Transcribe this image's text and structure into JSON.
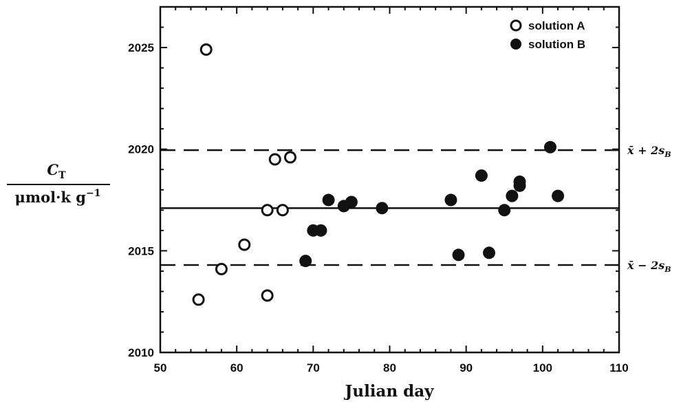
{
  "chart_data": {
    "type": "scatter",
    "xlabel": "Julian day",
    "ylabel": {
      "symbol": "C",
      "subscript": "T",
      "unit": "μmol·k g",
      "unit_superscript": "−1"
    },
    "xlim": [
      50,
      110
    ],
    "ylim": [
      2010,
      2027
    ],
    "x_ticks": [
      50,
      60,
      70,
      80,
      90,
      100,
      110
    ],
    "y_ticks": [
      2010,
      2015,
      2020,
      2025
    ],
    "grid": false,
    "legend_position": "top-right",
    "series": [
      {
        "name": "solution A",
        "marker": "open-circle",
        "x": [
          55,
          56,
          58,
          61,
          64,
          64,
          65,
          66,
          67
        ],
        "y": [
          2012.6,
          2024.9,
          2014.1,
          2015.3,
          2012.8,
          2017.0,
          2019.5,
          2017.0,
          2019.6
        ]
      },
      {
        "name": "solution B",
        "marker": "filled-circle",
        "x": [
          69,
          70,
          71,
          72,
          74,
          75,
          79,
          88,
          89,
          92,
          93,
          95,
          96,
          97,
          97,
          101,
          102
        ],
        "y": [
          2014.5,
          2016.0,
          2016.0,
          2017.5,
          2017.2,
          2017.4,
          2017.1,
          2017.5,
          2014.8,
          2018.7,
          2014.9,
          2017.0,
          2017.7,
          2018.2,
          2018.4,
          2020.1,
          2017.7
        ]
      }
    ],
    "reference_lines": [
      {
        "y": 2017.1,
        "style": "solid",
        "label": ""
      },
      {
        "y": 2019.95,
        "style": "dashed",
        "label": "x̄ + 2s_B",
        "label_main": "x̄ + 2",
        "label_var": "s",
        "label_sub": "B"
      },
      {
        "y": 2014.3,
        "style": "dashed",
        "label": "x̄ − 2s_B",
        "label_main": "x̄ − 2",
        "label_var": "s",
        "label_sub": "B"
      }
    ],
    "colors": {
      "ink": "#111111",
      "background": "#ffffff"
    }
  }
}
